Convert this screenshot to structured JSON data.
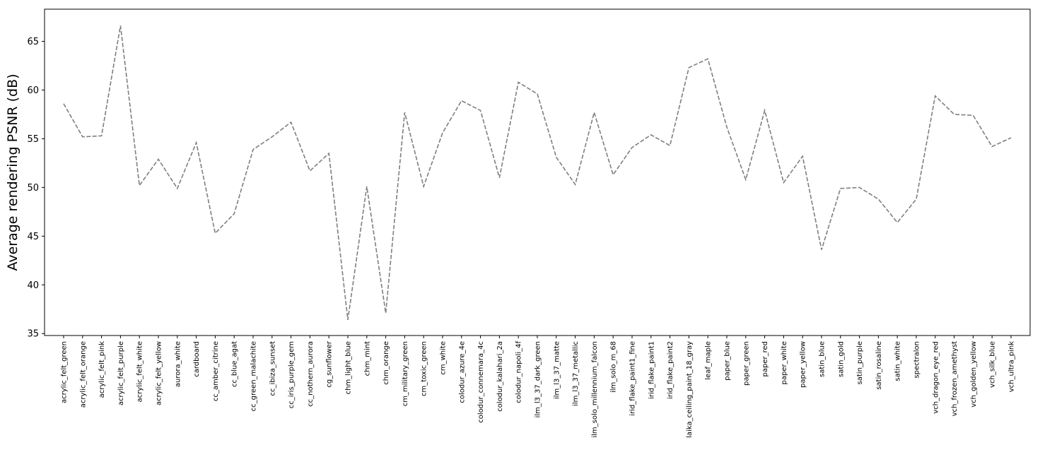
{
  "chart_data": {
    "type": "line",
    "title": "",
    "xlabel": "",
    "ylabel": "Average rendering PSNR (dB)",
    "ylim": [
      34.8,
      68.3
    ],
    "yticks": [
      35,
      40,
      45,
      50,
      55,
      60,
      65
    ],
    "grid": false,
    "categories": [
      "acrylic_felt_green",
      "acrylic_felt_orange",
      "acrylic_felt_pink",
      "acrylic_felt_purple",
      "acrylic_felt_white",
      "acrylic_felt_yellow",
      "aurora_white",
      "cardboard",
      "cc_amber_citrine",
      "cc_blue_agat",
      "cc_green_malachite",
      "cc_ibiza_sunset",
      "cc_iris_purple_gem",
      "cc_nothern_aurora",
      "cg_sunflower",
      "chm_light_blue",
      "chm_mint",
      "chm_orange",
      "cm_military_green",
      "cm_toxic_green",
      "cm_white",
      "colodur_azure_4e",
      "colodur_connemara_4c",
      "colodur_kalahari_2a",
      "colodur_napoli_4f",
      "ilm_l3_37_dark_green",
      "ilm_l3_37_matte",
      "ilm_l3_37_metallic",
      "ilm_solo_millennium_falcon",
      "ilm_solo_m_68",
      "irid_flake_paint1_fine",
      "irid_flake_paint1",
      "irid_flake_paint2",
      "laika_ceiling_paint_18_gray",
      "leaf_maple",
      "paper_blue",
      "paper_green",
      "paper_red",
      "paper_white",
      "paper_yellow",
      "satin_blue",
      "satin_gold",
      "satin_purple",
      "satin_rosaline",
      "satin_white",
      "spectralon",
      "vch_dragon_eye_red",
      "vch_frozen_amethyst",
      "vch_golden_yellow",
      "vch_silk_blue",
      "vch_ultra_pink"
    ],
    "series": [
      {
        "name": "",
        "color": "#7f7f7f",
        "line_style": "dashed",
        "values": [
          58.6,
          55.2,
          55.3,
          66.6,
          50.2,
          52.9,
          49.9,
          54.6,
          45.3,
          47.3,
          53.9,
          55.2,
          56.7,
          51.7,
          53.5,
          36.4,
          50.1,
          37.1,
          57.7,
          50.1,
          55.6,
          58.9,
          57.9,
          51.0,
          60.8,
          59.6,
          53.1,
          50.3,
          57.7,
          51.3,
          54.1,
          55.4,
          54.3,
          62.3,
          63.2,
          56.2,
          50.8,
          57.9,
          50.5,
          53.2,
          43.6,
          49.9,
          50.0,
          48.8,
          46.4,
          48.8,
          59.4,
          57.5,
          57.4,
          54.2,
          55.1
        ]
      }
    ]
  }
}
